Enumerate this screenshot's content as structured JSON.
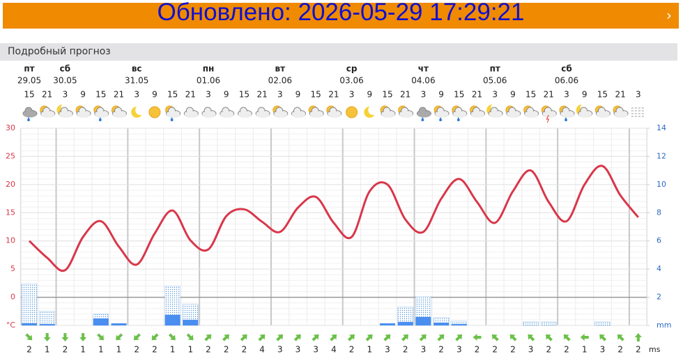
{
  "banner": {
    "text": "Обновлено: 2026-05-29 17:29:21"
  },
  "section": {
    "title": "Подробный прогноз"
  },
  "chart_data": {
    "type": "weather",
    "days": [
      {
        "name": "пт",
        "date": "29.05"
      },
      {
        "name": "сб",
        "date": "30.05"
      },
      {
        "name": "вс",
        "date": "31.05"
      },
      {
        "name": "пн",
        "date": "01.06"
      },
      {
        "name": "вт",
        "date": "02.06"
      },
      {
        "name": "ср",
        "date": "03.06"
      },
      {
        "name": "чт",
        "date": "04.06"
      },
      {
        "name": "пт",
        "date": "05.06"
      },
      {
        "name": "сб",
        "date": "06.06"
      }
    ],
    "hours": [
      "15",
      "21",
      "3",
      "9",
      "15",
      "21",
      "3",
      "9",
      "15",
      "21",
      "3",
      "9",
      "15",
      "21",
      "3",
      "9",
      "15",
      "21",
      "3",
      "9",
      "15",
      "21",
      "3",
      "9",
      "15",
      "21",
      "3",
      "9",
      "15",
      "21",
      "3",
      "9",
      "15",
      "21",
      "3"
    ],
    "ylim": [
      -5,
      30
    ],
    "yticks": [
      {
        "value": -5,
        "label": "°C"
      },
      0,
      5,
      10,
      15,
      20,
      25,
      30
    ],
    "y2lim": [
      0,
      14
    ],
    "y2ticks": [
      {
        "value": 0,
        "label": "mm"
      },
      2,
      4,
      6,
      8,
      10,
      12,
      14
    ],
    "series": [
      {
        "color": "#d9364a",
        "values": [
          10,
          7,
          4.8,
          10.7,
          13.5,
          9,
          5.8,
          11.3,
          15.4,
          10.1,
          8.5,
          14.4,
          15.6,
          13.4,
          11.6,
          15.9,
          17.8,
          13.2,
          10.7,
          18.8,
          20,
          13.8,
          11.6,
          17.5,
          21,
          16.9,
          13.2,
          18.8,
          22.5,
          16.9,
          13.5,
          20,
          23.3,
          18.1,
          14.2
        ]
      },
      {
        "axis": "y2",
        "color": "#5a9ad8",
        "values": [
          2.95,
          1.0,
          null,
          null,
          0.8,
          null,
          null,
          null,
          2.8,
          1.5,
          null,
          null,
          null,
          null,
          null,
          null,
          null,
          null,
          null,
          null,
          null,
          1.3,
          2.05,
          0.55,
          0.3,
          null,
          null,
          null,
          0.25,
          0.25,
          null,
          null,
          0.25,
          null,
          null
        ]
      },
      {
        "axis": "y2",
        "color": "#4a8ef0",
        "values": [
          0.15,
          0.1,
          null,
          null,
          0.5,
          0.15,
          null,
          null,
          0.75,
          0.4,
          null,
          null,
          null,
          null,
          null,
          null,
          null,
          null,
          null,
          null,
          0.15,
          0.25,
          0.6,
          0.2,
          0.1,
          null,
          null,
          null,
          null,
          null,
          null,
          null,
          null,
          null,
          null
        ]
      }
    ],
    "wind": {
      "unit": "ms",
      "color": "#6cc04a",
      "values": [
        2,
        1,
        2,
        1,
        1,
        1,
        2,
        2,
        1,
        1,
        2,
        2,
        2,
        4,
        3,
        3,
        3,
        4,
        2,
        1,
        3,
        2,
        3,
        2,
        3,
        2,
        2,
        2,
        3,
        2,
        2,
        1,
        3,
        2,
        2
      ],
      "direction": [
        135,
        180,
        180,
        180,
        135,
        225,
        225,
        225,
        135,
        135,
        45,
        45,
        45,
        45,
        45,
        45,
        45,
        45,
        45,
        45,
        45,
        45,
        45,
        45,
        45,
        270,
        315,
        315,
        315,
        315,
        315,
        270,
        315,
        315,
        0
      ]
    }
  }
}
